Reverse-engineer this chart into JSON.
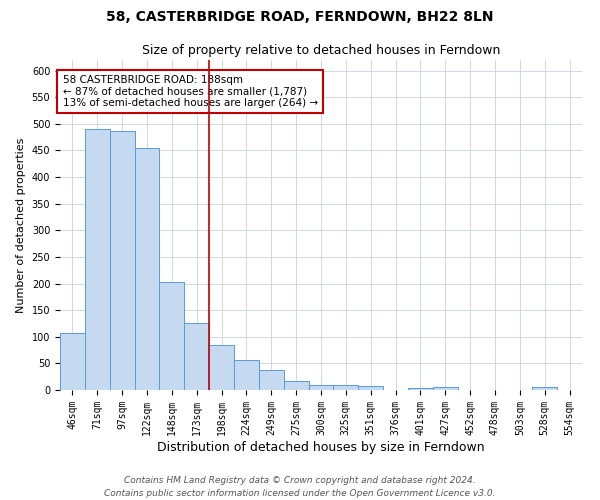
{
  "title": "58, CASTERBRIDGE ROAD, FERNDOWN, BH22 8LN",
  "subtitle": "Size of property relative to detached houses in Ferndown",
  "xlabel": "Distribution of detached houses by size in Ferndown",
  "ylabel": "Number of detached properties",
  "categories": [
    "46sqm",
    "71sqm",
    "97sqm",
    "122sqm",
    "148sqm",
    "173sqm",
    "198sqm",
    "224sqm",
    "249sqm",
    "275sqm",
    "300sqm",
    "325sqm",
    "351sqm",
    "376sqm",
    "401sqm",
    "427sqm",
    "452sqm",
    "478sqm",
    "503sqm",
    "528sqm",
    "554sqm"
  ],
  "values": [
    107,
    490,
    487,
    455,
    203,
    125,
    85,
    56,
    37,
    17,
    10,
    10,
    8,
    0,
    3,
    5,
    0,
    0,
    0,
    6,
    0
  ],
  "bar_color": "#c5d9f1",
  "bar_edge_color": "#5b9bd5",
  "background_color": "#ffffff",
  "grid_color": "#d0d8e8",
  "vline_x_index": 5.5,
  "vline_color": "#c00000",
  "annotation_line1": "58 CASTERBRIDGE ROAD: 188sqm",
  "annotation_line2": "← 87% of detached houses are smaller (1,787)",
  "annotation_line3": "13% of semi-detached houses are larger (264) →",
  "annotation_box_color": "#ffffff",
  "annotation_box_edge_color": "#c00000",
  "ylim": [
    0,
    620
  ],
  "yticks": [
    0,
    50,
    100,
    150,
    200,
    250,
    300,
    350,
    400,
    450,
    500,
    550,
    600
  ],
  "footer_line1": "Contains HM Land Registry data © Crown copyright and database right 2024.",
  "footer_line2": "Contains public sector information licensed under the Open Government Licence v3.0.",
  "title_fontsize": 10,
  "subtitle_fontsize": 9,
  "xlabel_fontsize": 9,
  "ylabel_fontsize": 8,
  "tick_fontsize": 7,
  "annotation_fontsize": 7.5,
  "footer_fontsize": 6.5
}
